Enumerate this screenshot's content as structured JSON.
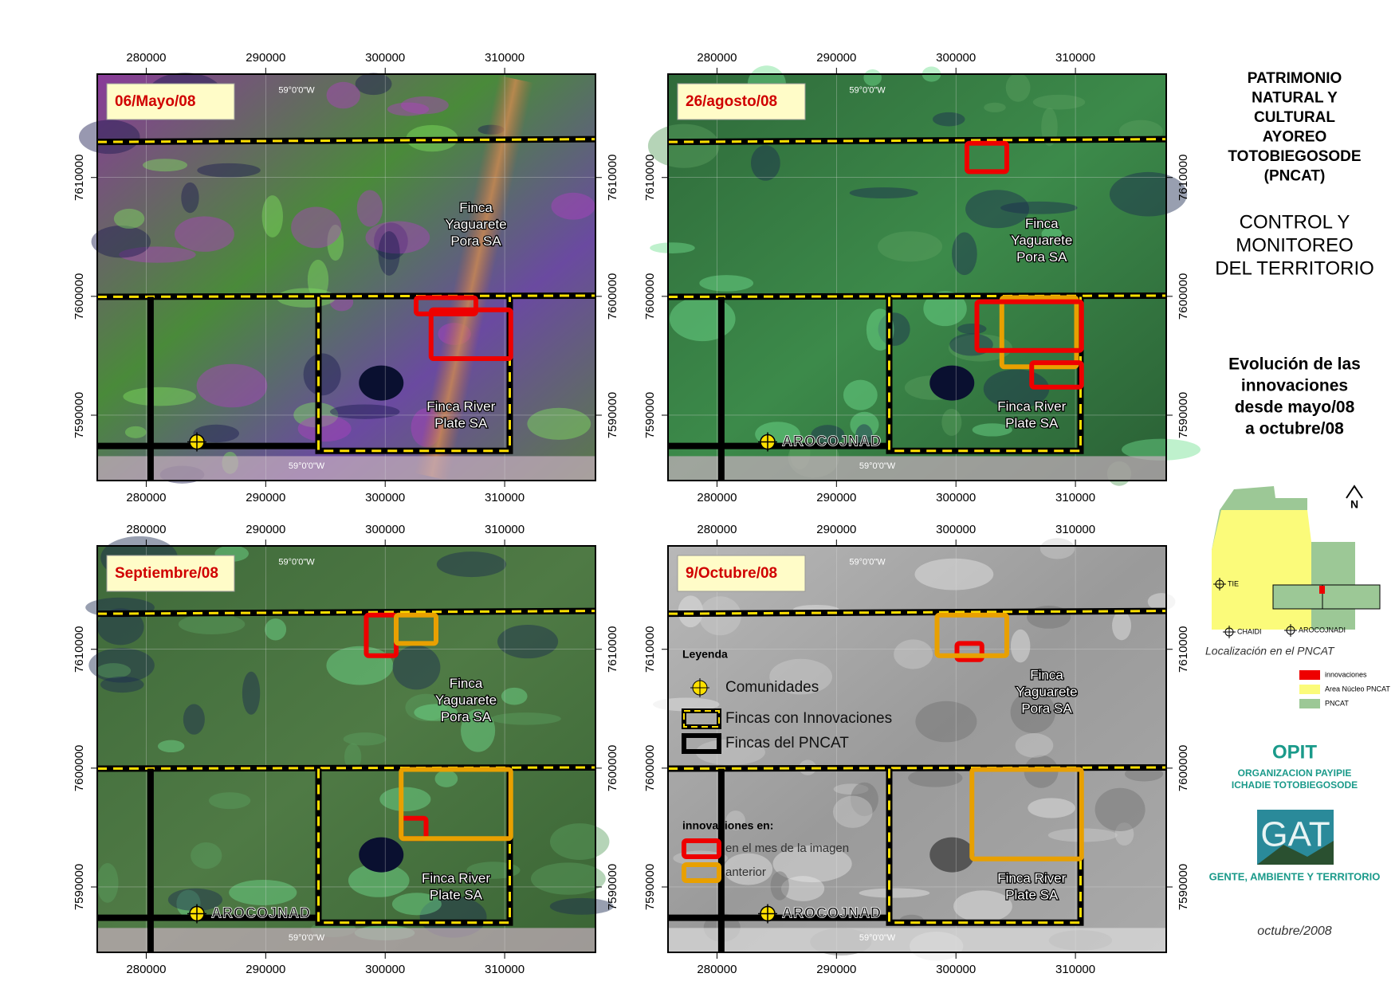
{
  "axes": {
    "x_ticks": [
      280000,
      290000,
      300000,
      310000
    ],
    "y_ticks": [
      7610000,
      7600000,
      7590000
    ],
    "xlim": [
      275900,
      317600
    ],
    "ylim": [
      7584500,
      7618700
    ],
    "meridian": "59°0'0\"W"
  },
  "panels": [
    {
      "date": "06/Mayo/08",
      "finca_north": [
        "Finca",
        "Yaguarete",
        "Pora SA"
      ],
      "finca_south": [
        "Finca River",
        "Plate SA"
      ]
    },
    {
      "date": "26/agosto/08",
      "finca_north": [
        "Finca",
        "Yaguarete",
        "Pora SA"
      ],
      "finca_south": [
        "Finca River",
        "Plate SA"
      ],
      "community": "AROCOJNAD"
    },
    {
      "date": "Septiembre/08",
      "finca_north": [
        "Finca",
        "Yaguarete",
        "Pora SA"
      ],
      "finca_south": [
        "Finca River",
        "Plate SA"
      ],
      "community": "AROCOJNAD"
    },
    {
      "date": "9/Octubre/08",
      "finca_north": [
        "Finca",
        "Yaguarete",
        "Pora SA"
      ],
      "finca_south": [
        "Finca River",
        "Plate SA"
      ],
      "community": "AROCOJNAD"
    }
  ],
  "legend": {
    "title": "Leyenda",
    "items": [
      "Comunidades",
      "Fincas con Innovaciones",
      "Fincas del PNCAT"
    ],
    "innovations_title": "innovaciones en:",
    "innovations": [
      "en el mes de la imagen",
      "anterior"
    ]
  },
  "sidebar": {
    "title": [
      "PATRIMONIO",
      "NATURAL Y",
      "CULTURAL",
      "AYOREO",
      "TOTOBIEGOSODE",
      "(PNCAT)"
    ],
    "subtitle": [
      "CONTROL Y",
      "MONITOREO",
      "DEL TERRITORIO"
    ],
    "description": [
      "Evolución de las",
      "innovaciones",
      "desde mayo/08",
      "a octubre/08"
    ],
    "inset": {
      "north": "N",
      "places": [
        "TIE",
        "CHAIDI",
        "AROCOJNADI"
      ],
      "caption": "Localización en el PNCAT",
      "legend": [
        "innovaciones",
        "Area Núcleo PNCAT",
        "PNCAT"
      ]
    },
    "org": {
      "name": "OPIT",
      "full": [
        "ORGANIZACION PAYIPIE",
        "ICHADIE TOTOBIEGOSODE"
      ]
    },
    "gat": {
      "logo": "GAT",
      "full": "GENTE, AMBIENTE Y TERRITORIO"
    },
    "date": "octubre/2008"
  }
}
